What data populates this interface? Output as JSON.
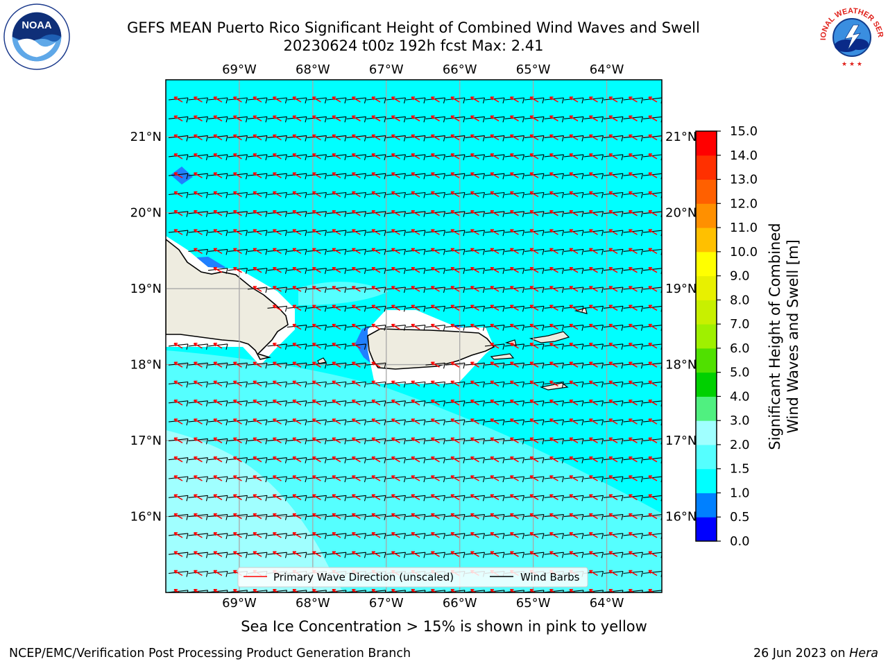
{
  "header": {
    "title": "GEFS MEAN Puerto Rico Significant Height of Combined Wind Waves and Swell",
    "subtitle": "20230624 t00z 192h fcst   Max: 2.41"
  },
  "logos": {
    "left": {
      "icon": "noaa-logo",
      "text": "NOAA",
      "ring_text": "NATIONAL OCEANIC AND ATMOSPHERIC ADMINISTRATION · U.S. DEPARTMENT OF COMMERCE"
    },
    "right": {
      "icon": "nws-logo",
      "ring_text": "NATIONAL WEATHER SERVICE"
    }
  },
  "map": {
    "lon_ticks": [
      "69°W",
      "68°W",
      "67°W",
      "66°W",
      "65°W",
      "64°W"
    ],
    "lat_ticks": [
      "21°N",
      "20°N",
      "19°N",
      "18°N",
      "17°N",
      "16°N"
    ],
    "lon_values": [
      -69,
      -68,
      -67,
      -66,
      -65,
      -64
    ],
    "lat_values": [
      21,
      20,
      19,
      18,
      17,
      16
    ],
    "lon_range": [
      -70.0,
      -63.25
    ],
    "lat_range": [
      15.0,
      21.75
    ],
    "grid": true,
    "land_color": "#eeece0",
    "sea_color": "#00ffff",
    "light_sea_color": "#99ffff",
    "legend": {
      "wave_label": "Primary Wave Direction (unscaled)",
      "barb_label": "Wind Barbs",
      "wave_color": "#ff0000",
      "barb_color": "#000000",
      "placement": "bottom-center"
    }
  },
  "colorbar": {
    "label_line1": "Significant Height of Combined",
    "label_line2": "Wind Waves and Swell [m]",
    "ticks": [
      "15.0",
      "14.0",
      "13.0",
      "12.0",
      "11.0",
      "10.0",
      "9.0",
      "8.0",
      "7.0",
      "6.0",
      "5.0",
      "4.0",
      "3.0",
      "2.0",
      "1.5",
      "1.0",
      "0.5",
      "0.0"
    ],
    "colors_bottom_to_top": [
      "#0000ff",
      "#0080ff",
      "#00ffff",
      "#55ffff",
      "#a0ffff",
      "#50f080",
      "#00d000",
      "#50e000",
      "#9ff000",
      "#c8f000",
      "#e8f000",
      "#ffff00",
      "#ffc000",
      "#ff9000",
      "#ff6000",
      "#ff3000",
      "#ff0000"
    ]
  },
  "caption": "Sea Ice Concentration > 15% is shown in pink to yellow",
  "footer": {
    "left": "NCEP/EMC/Verification Post Processing Product Generation Branch",
    "right_date": "26 Jun 2023 on ",
    "right_host": "Hera"
  }
}
